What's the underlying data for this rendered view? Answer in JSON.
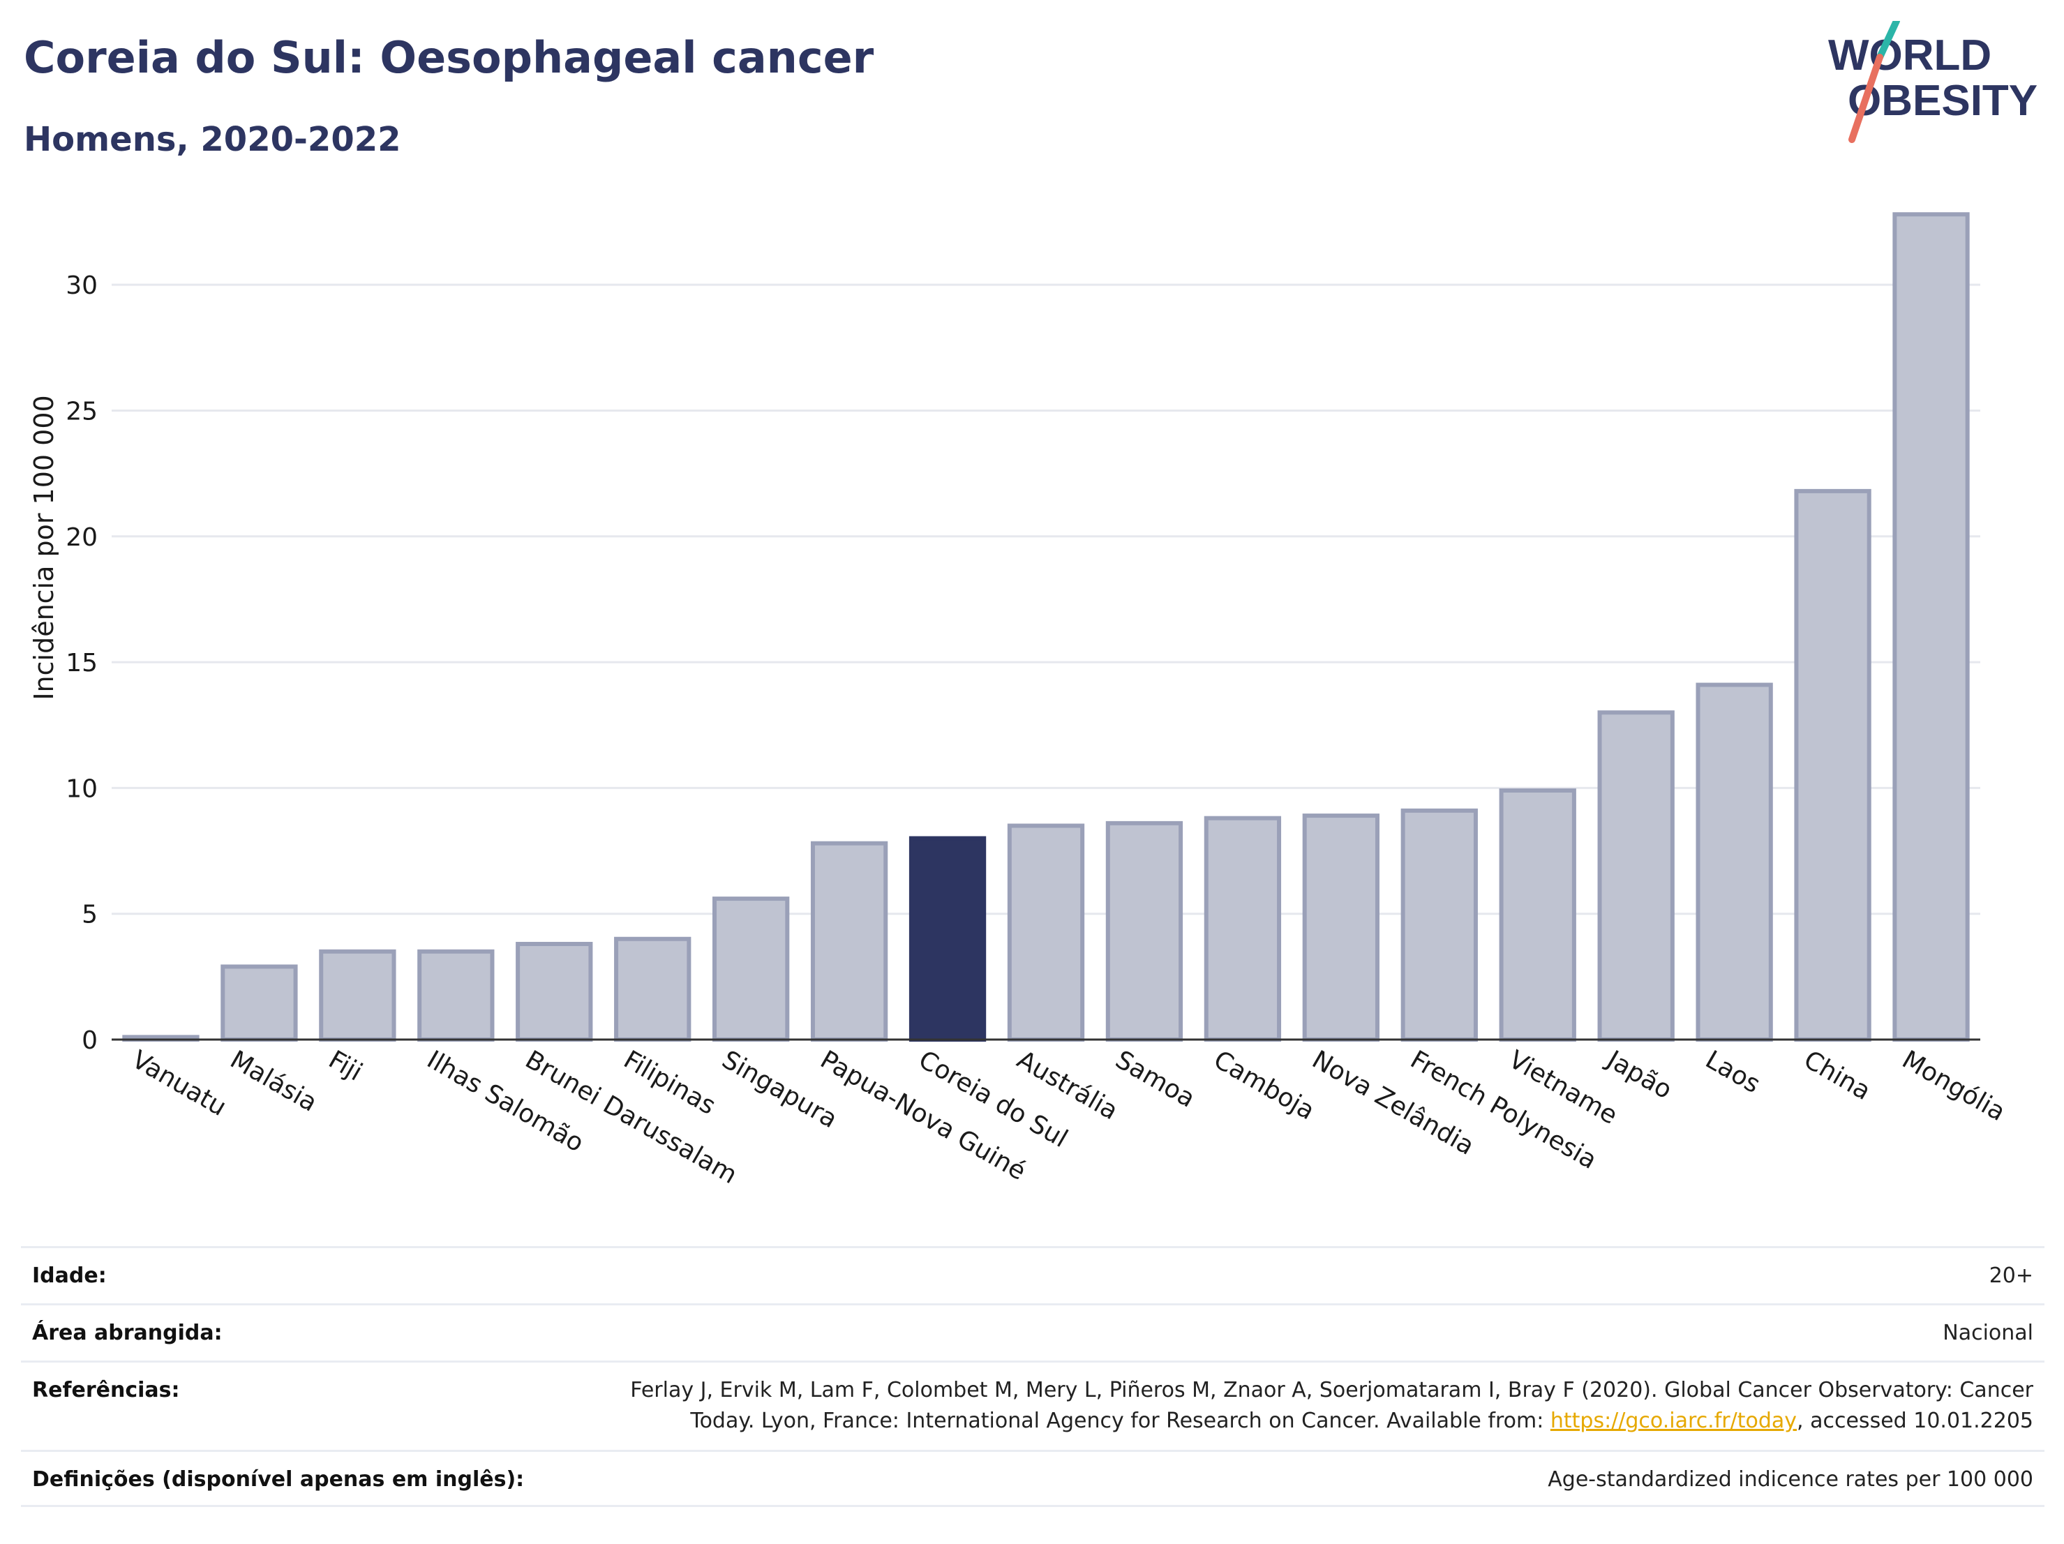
{
  "header": {
    "title": "Coreia do Sul: Oesophageal cancer",
    "subtitle": "Homens, 2020-2022"
  },
  "logo": {
    "line1": "WORLD",
    "line2": "OBESITY",
    "accent_teal": "#2bb5a8",
    "accent_red": "#e8705f"
  },
  "colors": {
    "bar_default": "#bfc3d1",
    "bar_default_stroke": "#9aa0b8",
    "bar_highlight": "#2d3561",
    "text_dark": "#2d3561"
  },
  "chart_data": {
    "type": "bar",
    "ylabel": "Incidência por 100 000",
    "xlabel": "",
    "ylim": [
      0,
      33
    ],
    "yticks": [
      0,
      5,
      10,
      15,
      20,
      25,
      30
    ],
    "grid": true,
    "highlight": "Coreia do Sul",
    "categories": [
      "Vanuatu",
      "Malásia",
      "Fiji",
      "Ilhas Salomão",
      "Brunei Darussalam",
      "Filipinas",
      "Singapura",
      "Papua-Nova Guiné",
      "Coreia do Sul",
      "Austrália",
      "Samoa",
      "Camboja",
      "Nova Zelândia",
      "French Polynesia",
      "Vietname",
      "Japão",
      "Laos",
      "China",
      "Mongólia"
    ],
    "values": [
      0.1,
      2.9,
      3.5,
      3.5,
      3.8,
      4.0,
      5.6,
      7.8,
      8.0,
      8.5,
      8.6,
      8.8,
      8.9,
      9.1,
      9.9,
      13.0,
      14.1,
      21.8,
      32.8
    ]
  },
  "info": {
    "age_label": "Idade:",
    "age_value": "20+",
    "area_label": "Área abrangida:",
    "area_value": "Nacional",
    "refs_label": "Referências:",
    "refs_line1": "Ferlay J, Ervik M, Lam F, Colombet M, Mery L, Piñeros M, Znaor A, Soerjomataram I, Bray F (2020). Global Cancer Observatory: Cancer",
    "refs_line2_pre": "Today. Lyon, France: International Agency for Research on Cancer. Available from: ",
    "refs_link": "https://gco.iarc.fr/today",
    "refs_line2_post": ", accessed 10.01.2205",
    "defs_label": "Definições (disponível apenas em inglês):",
    "defs_value": "Age-standardized indicence rates per 100 000"
  }
}
